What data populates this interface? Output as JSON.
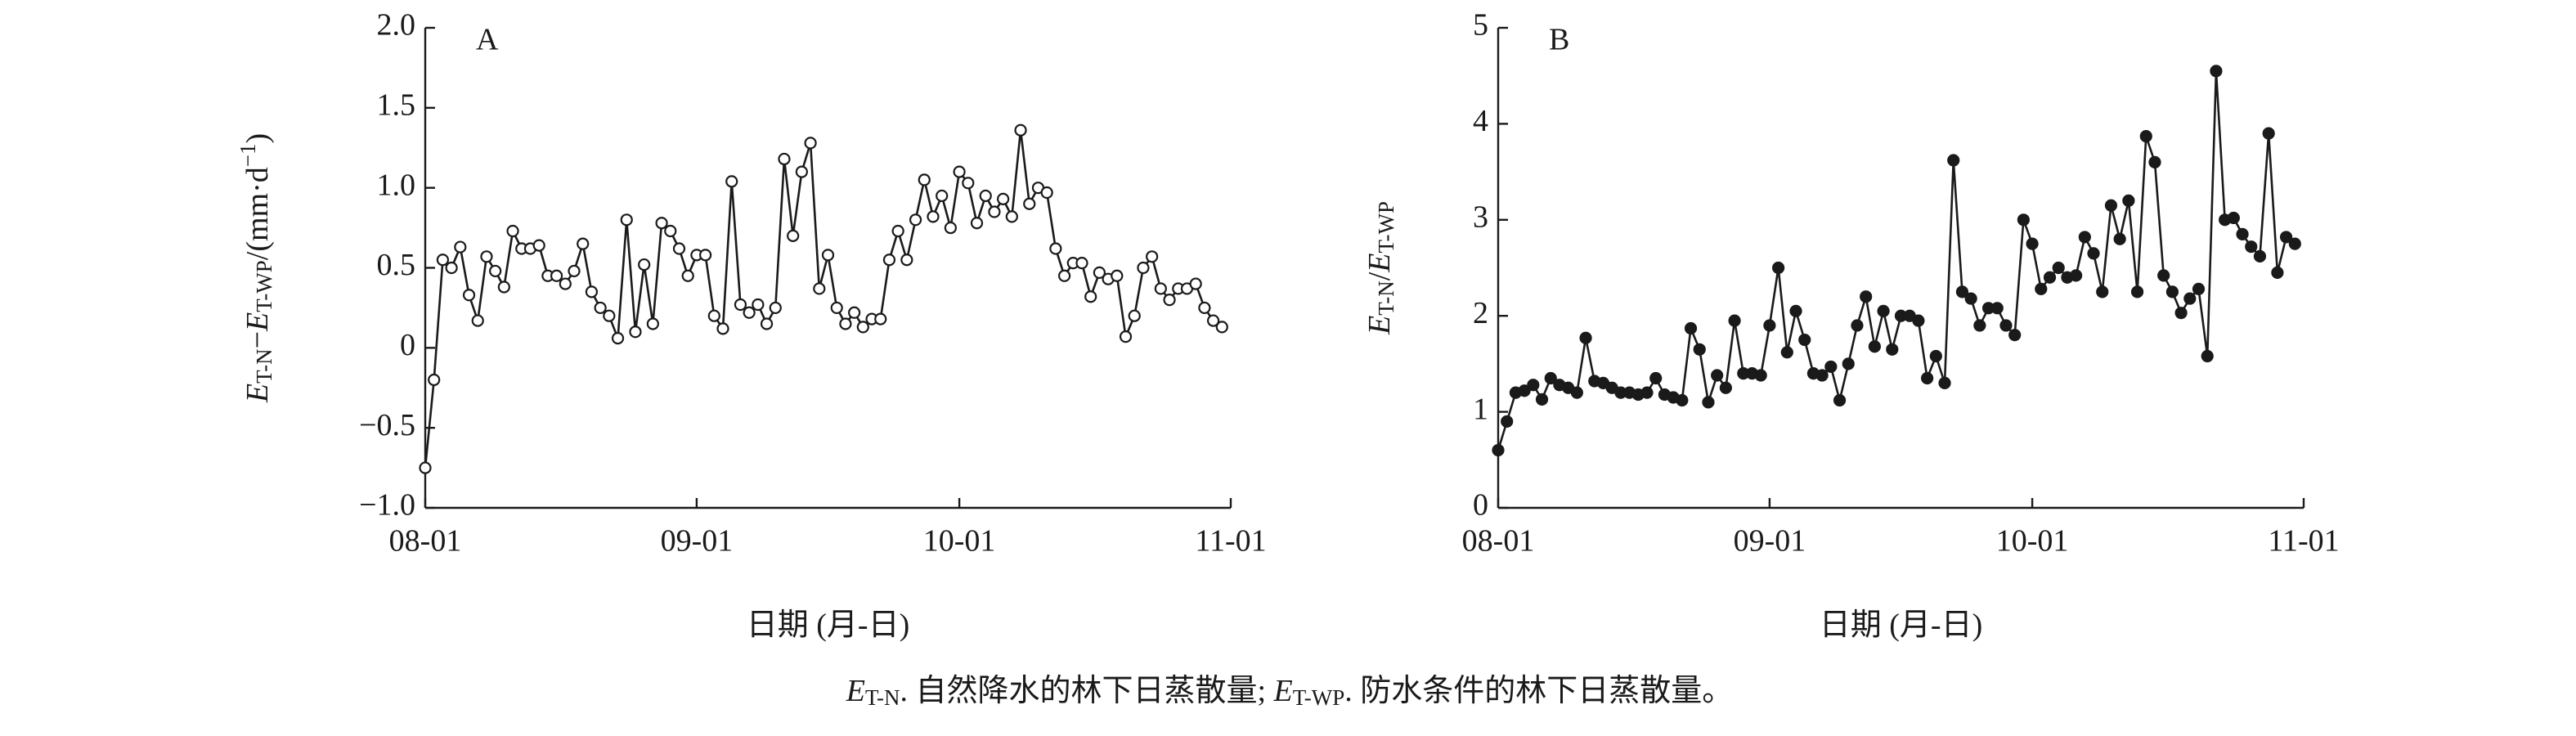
{
  "chart_data": [
    {
      "type": "line",
      "panel": "A",
      "marker": "open",
      "color": "#1a1a1a",
      "ylabel": [
        "E",
        "T-N",
        "−",
        "E",
        "T-WP",
        "/(mm·d",
        "−1",
        ")"
      ],
      "xlabel": "日期 (月-日)",
      "xlim": [
        0,
        92
      ],
      "xticks": [
        {
          "value": 0,
          "label": "08-01"
        },
        {
          "value": 31,
          "label": "09-01"
        },
        {
          "value": 61,
          "label": "10-01"
        },
        {
          "value": 92,
          "label": "11-01"
        }
      ],
      "ylim": [
        -1,
        2
      ],
      "yticks": [
        {
          "value": 2,
          "label": "2.0"
        },
        {
          "value": 1.5,
          "label": "1.5"
        },
        {
          "value": 1,
          "label": "1.0"
        },
        {
          "value": 0.5,
          "label": "0.5"
        },
        0,
        {
          "value": -0.5,
          "label": "−0.5"
        },
        {
          "value": -1,
          "label": "−1.0"
        }
      ],
      "x": [
        0,
        1,
        2,
        3,
        4,
        5,
        6,
        7,
        8,
        9,
        10,
        11,
        12,
        13,
        14,
        15,
        16,
        17,
        18,
        19,
        20,
        21,
        22,
        23,
        24,
        25,
        26,
        27,
        28,
        29,
        30,
        31,
        32,
        33,
        34,
        35,
        36,
        37,
        38,
        39,
        40,
        41,
        42,
        43,
        44,
        45,
        46,
        47,
        48,
        49,
        50,
        51,
        52,
        53,
        54,
        55,
        56,
        57,
        58,
        59,
        60,
        61,
        62,
        63,
        64,
        65,
        66,
        67,
        68,
        69,
        70,
        71,
        72,
        73,
        74,
        75,
        76,
        77,
        78,
        79,
        80,
        81,
        82,
        83,
        84,
        85,
        86,
        87,
        88,
        89,
        90,
        91
      ],
      "values": [
        -0.75,
        -0.2,
        0.55,
        0.5,
        0.63,
        0.33,
        0.17,
        0.57,
        0.48,
        0.38,
        0.73,
        0.62,
        0.62,
        0.64,
        0.45,
        0.45,
        0.4,
        0.48,
        0.65,
        0.35,
        0.25,
        0.2,
        0.06,
        0.8,
        0.1,
        0.52,
        0.15,
        0.78,
        0.73,
        0.62,
        0.45,
        0.58,
        0.58,
        0.2,
        0.12,
        1.04,
        0.27,
        0.22,
        0.27,
        0.15,
        0.25,
        1.18,
        0.7,
        1.1,
        1.28,
        0.37,
        0.58,
        0.25,
        0.15,
        0.22,
        0.13,
        0.18,
        0.18,
        0.55,
        0.73,
        0.55,
        0.8,
        1.05,
        0.82,
        0.95,
        0.75,
        1.1,
        1.03,
        0.78,
        0.95,
        0.85,
        0.93,
        0.82,
        1.36,
        0.9,
        1.0,
        0.97,
        0.62,
        0.45,
        0.53,
        0.53,
        0.32,
        0.47,
        0.43,
        0.45,
        0.07,
        0.2,
        0.5,
        0.57,
        0.37,
        0.3,
        0.37,
        0.37,
        0.4,
        0.25,
        0.17,
        0.13
      ]
    },
    {
      "type": "line",
      "panel": "B",
      "marker": "filled",
      "color": "#1a1a1a",
      "ylabel": [
        "E",
        "T-N",
        "/",
        "E",
        "T-WP"
      ],
      "xlabel": "日期 (月-日)",
      "xlim": [
        0,
        92
      ],
      "xticks": [
        {
          "value": 0,
          "label": "08-01"
        },
        {
          "value": 31,
          "label": "09-01"
        },
        {
          "value": 61,
          "label": "10-01"
        },
        {
          "value": 92,
          "label": "11-01"
        }
      ],
      "ylim": [
        0,
        5
      ],
      "yticks": [
        5,
        4,
        3,
        2,
        1,
        0
      ],
      "x": [
        0,
        1,
        2,
        3,
        4,
        5,
        6,
        7,
        8,
        9,
        10,
        11,
        12,
        13,
        14,
        15,
        16,
        17,
        18,
        19,
        20,
        21,
        22,
        23,
        24,
        25,
        26,
        27,
        28,
        29,
        30,
        31,
        32,
        33,
        34,
        35,
        36,
        37,
        38,
        39,
        40,
        41,
        42,
        43,
        44,
        45,
        46,
        47,
        48,
        49,
        50,
        51,
        52,
        53,
        54,
        55,
        56,
        57,
        58,
        59,
        60,
        61,
        62,
        63,
        64,
        65,
        66,
        67,
        68,
        69,
        70,
        71,
        72,
        73,
        74,
        75,
        76,
        77,
        78,
        79,
        80,
        81,
        82,
        83,
        84,
        85,
        86,
        87,
        88,
        89,
        90,
        91
      ],
      "values": [
        0.6,
        0.9,
        1.2,
        1.22,
        1.28,
        1.13,
        1.35,
        1.28,
        1.25,
        1.2,
        1.77,
        1.32,
        1.3,
        1.25,
        1.2,
        1.2,
        1.18,
        1.2,
        1.35,
        1.18,
        1.15,
        1.12,
        1.87,
        1.65,
        1.1,
        1.38,
        1.25,
        1.95,
        1.4,
        1.4,
        1.38,
        1.9,
        2.5,
        1.62,
        2.05,
        1.75,
        1.4,
        1.38,
        1.47,
        1.12,
        1.5,
        1.9,
        2.2,
        1.68,
        2.05,
        1.65,
        2.0,
        2.0,
        1.95,
        1.35,
        1.58,
        1.3,
        3.62,
        2.25,
        2.18,
        1.9,
        2.08,
        2.08,
        1.9,
        1.8,
        3.0,
        2.75,
        2.28,
        2.4,
        2.5,
        2.4,
        2.42,
        2.82,
        2.65,
        2.25,
        3.15,
        2.8,
        3.2,
        2.25,
        3.87,
        3.6,
        2.42,
        2.25,
        2.03,
        2.18,
        2.28,
        1.58,
        4.55,
        3.0,
        3.02,
        2.85,
        2.72,
        2.62,
        3.9,
        2.45,
        2.82,
        2.75
      ]
    }
  ],
  "caption": [
    "E",
    "T-N",
    ". 自然降水的林下日蒸散量; ",
    "E",
    "T-WP",
    ". 防水条件的林下日蒸散量。"
  ]
}
